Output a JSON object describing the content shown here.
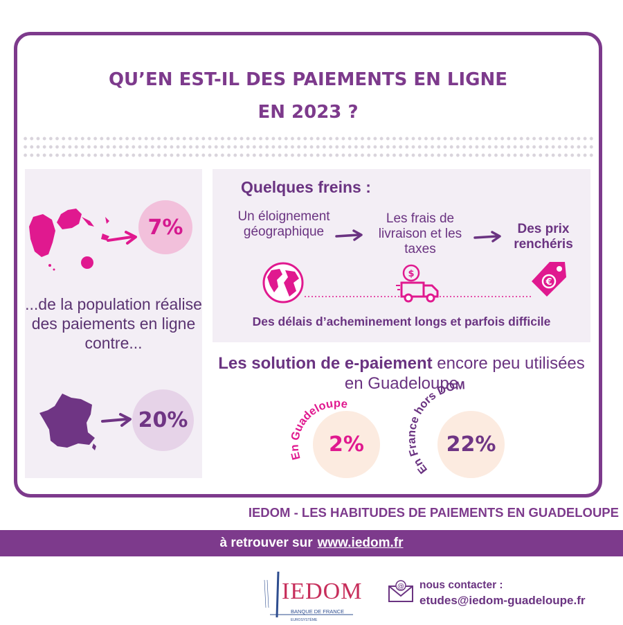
{
  "header": {
    "title_line1": "QU’EN EST-IL DES PAIEMENTS EN LIGNE",
    "title_line2": "EN 2023 ?"
  },
  "population": {
    "guadeloupe_percent": "7%",
    "text": "...de la population réalise des paiements en ligne contre...",
    "france_percent": "20%"
  },
  "freins": {
    "title": "Quelques freins :",
    "steps": [
      "Un éloignement géographique",
      "Les frais de livraison et les taxes",
      "Des prix renchéris"
    ],
    "delais": "Des délais d’acheminement longs et parfois difficile",
    "icons": [
      "globe-icon",
      "delivery-truck-icon",
      "euro-price-tag-icon"
    ]
  },
  "solutions": {
    "title_bold": "Les solution de e-paiement",
    "title_rest": " encore peu utilisées en Guadeloupe",
    "guadeloupe_label": "En Guadeloupe",
    "guadeloupe_value": "2%",
    "france_label": "En France hors DOM",
    "france_value": "22%"
  },
  "footer": {
    "title": "IEDOM - LES HABITUDES DE PAIEMENTS EN GUADELOUPE",
    "retrouver": "à retrouver sur",
    "url": "www.iedom.fr",
    "logo_text": "IEDOM",
    "logo_sub": "BANQUE DE FRANCE",
    "logo_sub2": "EUROSYSTÈME",
    "contact_label": "nous contacter :",
    "contact_email": "etudes@iedom-guadeloupe.fr"
  },
  "colors": {
    "purple": "#7d3a8c",
    "magenta": "#e0198f",
    "panel": "#f3eef5",
    "peach": "#fcebe0"
  }
}
